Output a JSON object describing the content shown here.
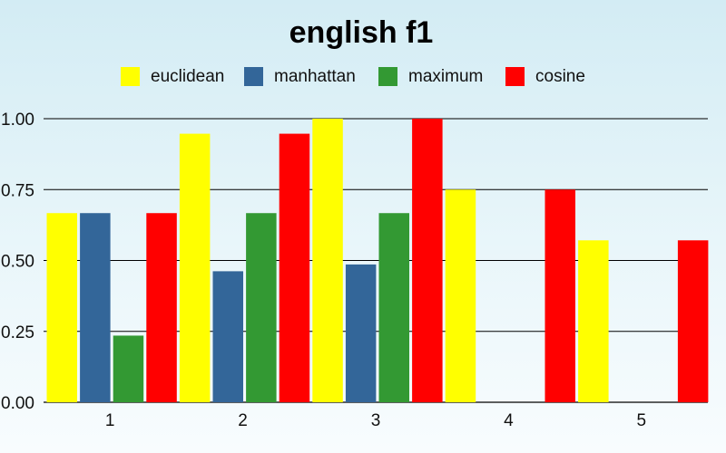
{
  "chart_data": {
    "type": "bar",
    "title": "english f1",
    "xlabel": "",
    "ylabel": "",
    "categories": [
      "1",
      "2",
      "3",
      "4",
      "5"
    ],
    "series": [
      {
        "name": "euclidean",
        "color": "#ffff00",
        "values": [
          0.667,
          0.947,
          1.0,
          0.75,
          0.571
        ]
      },
      {
        "name": "manhattan",
        "color": "#336699",
        "values": [
          0.667,
          0.462,
          0.486,
          0.0,
          0.0
        ]
      },
      {
        "name": "maximum",
        "color": "#339933",
        "values": [
          0.235,
          0.667,
          0.667,
          0.0,
          0.0
        ]
      },
      {
        "name": "cosine",
        "color": "#ff0000",
        "values": [
          0.667,
          0.947,
          1.0,
          0.75,
          0.571
        ]
      }
    ],
    "ylim": [
      0,
      1.0
    ],
    "yticks": [
      "0.00",
      "0.25",
      "0.50",
      "0.75",
      "1.00"
    ],
    "ytick_values": [
      0,
      0.25,
      0.5,
      0.75,
      1.0
    ],
    "grid": true,
    "legend_position": "top"
  }
}
